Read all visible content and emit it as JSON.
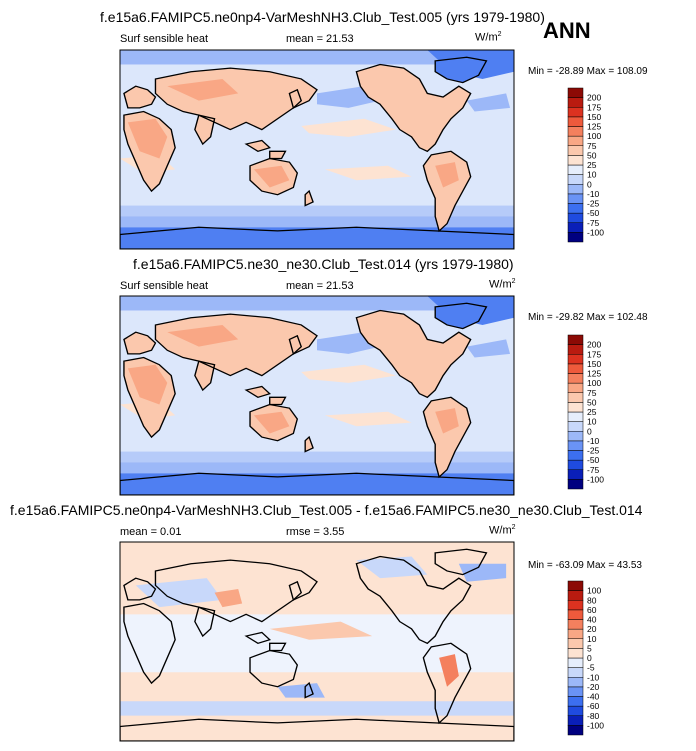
{
  "season": "ANN",
  "panels": [
    {
      "title": "f.e15a6.FAMIPC5.ne0np4-VarMeshNH3.Club_Test.005 (yrs 1979-1980)",
      "variable": "Surf sensible heat",
      "stat1": "mean =  21.53",
      "stat2": "",
      "units": "W/m",
      "units_sup": "2",
      "minmax": "Min = -28.89 Max = 108.09",
      "colorbar": {
        "colors": [
          "#000080",
          "#0a1fb8",
          "#1f4be0",
          "#3c6ff0",
          "#6a93f5",
          "#9cb8f8",
          "#c8d8fa",
          "#e6eefc",
          "#fde3d2",
          "#fbc8ad",
          "#f9a785",
          "#f4805e",
          "#ee5a3c",
          "#dc3220",
          "#b91b10",
          "#8c0a05"
        ],
        "labels": [
          "200",
          "175",
          "150",
          "125",
          "100",
          "75",
          "50",
          "25",
          "10",
          "0",
          "-10",
          "-25",
          "-50",
          "-75",
          "-100"
        ]
      }
    },
    {
      "title": "f.e15a6.FAMIPC5.ne30_ne30.Club_Test.014 (yrs 1979-1980)",
      "variable": "Surf sensible heat",
      "stat1": "mean =  21.53",
      "stat2": "",
      "units": "W/m",
      "units_sup": "2",
      "minmax": "Min = -29.82 Max = 102.48",
      "colorbar": {
        "colors": [
          "#000080",
          "#0a1fb8",
          "#1f4be0",
          "#3c6ff0",
          "#6a93f5",
          "#9cb8f8",
          "#c8d8fa",
          "#e6eefc",
          "#fde3d2",
          "#fbc8ad",
          "#f9a785",
          "#f4805e",
          "#ee5a3c",
          "#dc3220",
          "#b91b10",
          "#8c0a05"
        ],
        "labels": [
          "200",
          "175",
          "150",
          "125",
          "100",
          "75",
          "50",
          "25",
          "10",
          "0",
          "-10",
          "-25",
          "-50",
          "-75",
          "-100"
        ]
      }
    },
    {
      "title": "f.e15a6.FAMIPC5.ne0np4-VarMeshNH3.Club_Test.005 - f.e15a6.FAMIPC5.ne30_ne30.Club_Test.014",
      "variable": "",
      "stat1": "mean =  0.01",
      "stat2": "rmse =   3.55",
      "units": "W/m",
      "units_sup": "2",
      "minmax": "Min = -63.09 Max = 43.53",
      "colorbar": {
        "colors": [
          "#000080",
          "#0a1fb8",
          "#1f4be0",
          "#3c6ff0",
          "#6a93f5",
          "#9cb8f8",
          "#c8d8fa",
          "#e6eefc",
          "#fde3d2",
          "#fbc8ad",
          "#f9a785",
          "#f4805e",
          "#ee5a3c",
          "#dc3220",
          "#b91b10",
          "#8c0a05"
        ],
        "labels": [
          "100",
          "80",
          "60",
          "40",
          "20",
          "10",
          "5",
          "0",
          "-5",
          "-10",
          "-20",
          "-40",
          "-60",
          "-80",
          "-100"
        ]
      }
    }
  ]
}
